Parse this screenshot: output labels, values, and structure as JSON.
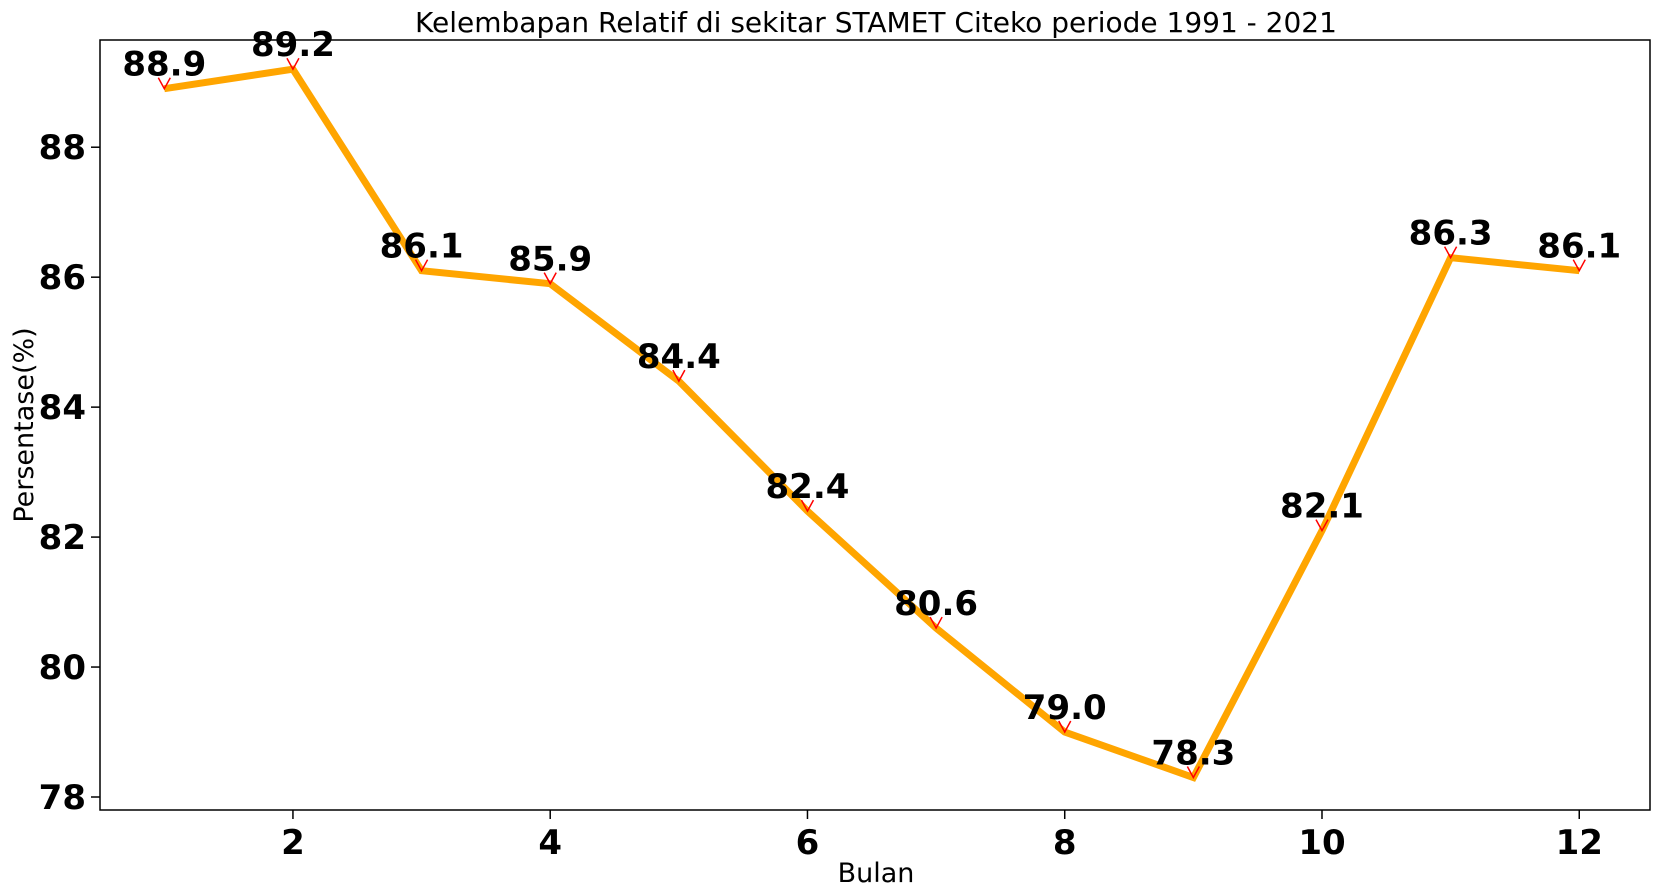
{
  "chart_data": {
    "type": "line",
    "title": "Kelembapan Relatif di sekitar STAMET Citeko periode 1991 - 2021",
    "xlabel": "Bulan",
    "ylabel": "Persentase(%)",
    "x": [
      1,
      2,
      3,
      4,
      5,
      6,
      7,
      8,
      9,
      10,
      11,
      12
    ],
    "series": [
      {
        "values": [
          88.9,
          89.2,
          86.1,
          85.9,
          84.4,
          82.4,
          80.6,
          79.0,
          78.3,
          82.1,
          86.3,
          86.1
        ],
        "color": "#ffa500"
      }
    ],
    "data_labels": [
      "88.9",
      "89.2",
      "86.1",
      "85.9",
      "84.4",
      "82.4",
      "80.6",
      "79.0",
      "78.3",
      "82.1",
      "86.3",
      "86.1"
    ],
    "xticks": [
      2,
      4,
      6,
      8,
      10,
      12
    ],
    "xtick_labels": [
      "2",
      "4",
      "6",
      "8",
      "10",
      "12"
    ],
    "yticks": [
      78,
      80,
      82,
      84,
      86,
      88
    ],
    "ytick_labels": [
      "78",
      "80",
      "82",
      "84",
      "86",
      "88"
    ],
    "xlim": [
      0.5,
      12.55
    ],
    "ylim": [
      77.8,
      89.65
    ],
    "grid": false,
    "marker": "tri_down",
    "marker_color": "#ff0000"
  }
}
